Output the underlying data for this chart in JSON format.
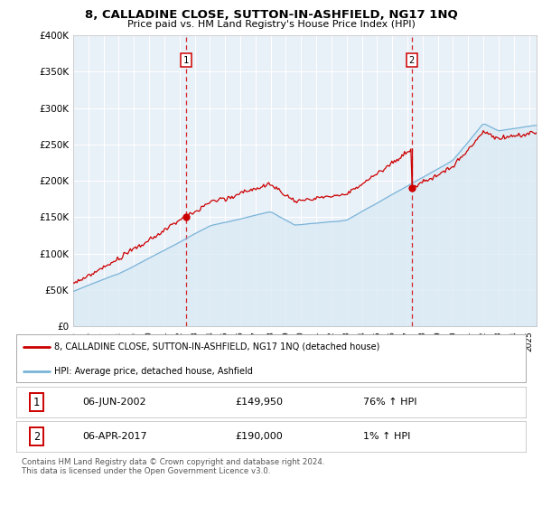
{
  "title": "8, CALLADINE CLOSE, SUTTON-IN-ASHFIELD, NG17 1NQ",
  "subtitle": "Price paid vs. HM Land Registry's House Price Index (HPI)",
  "legend_entry1": "8, CALLADINE CLOSE, SUTTON-IN-ASHFIELD, NG17 1NQ (detached house)",
  "legend_entry2": "HPI: Average price, detached house, Ashfield",
  "sale1_label": "1",
  "sale1_date": "06-JUN-2002",
  "sale1_price": "£149,950",
  "sale1_hpi": "76% ↑ HPI",
  "sale2_label": "2",
  "sale2_date": "06-APR-2017",
  "sale2_price": "£190,000",
  "sale2_hpi": "1% ↑ HPI",
  "footnote": "Contains HM Land Registry data © Crown copyright and database right 2024.\nThis data is licensed under the Open Government Licence v3.0.",
  "hpi_color": "#7ab4d8",
  "hpi_fill": "#dbeaf5",
  "price_color": "#cc0000",
  "marker_color": "#cc0000",
  "dashed_color": "#cc0000",
  "bg_plot": "#e8f0f8",
  "bg_fig": "#ffffff",
  "grid_color": "#ffffff",
  "ylim": [
    0,
    400000
  ],
  "yticks": [
    0,
    50000,
    100000,
    150000,
    200000,
    250000,
    300000,
    350000,
    400000
  ],
  "ytick_labels": [
    "£0",
    "£50K",
    "£100K",
    "£150K",
    "£200K",
    "£250K",
    "£300K",
    "£350K",
    "£400K"
  ],
  "sale1_x": 2002.42,
  "sale1_y": 149950,
  "sale2_x": 2017.27,
  "sale2_y": 190000,
  "xlim_left": 1995.0,
  "xlim_right": 2025.5
}
